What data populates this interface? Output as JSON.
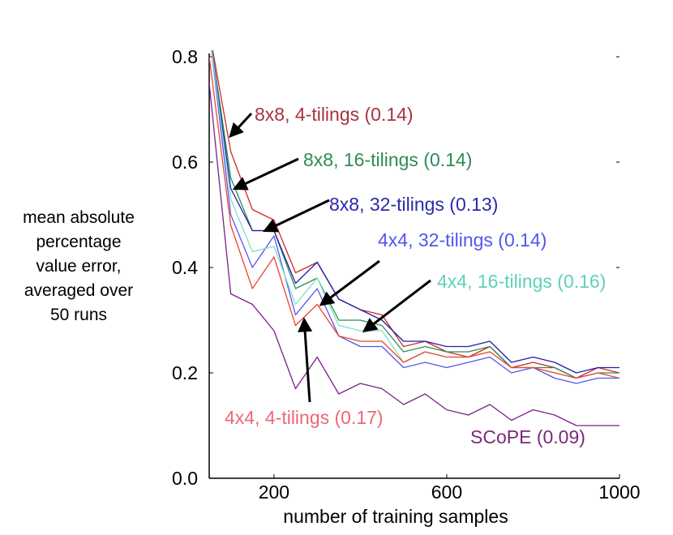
{
  "chart_data": {
    "type": "line",
    "title": "",
    "xlabel": "number of training samples",
    "ylabel": [
      "mean absolute",
      "percentage",
      "value error,",
      "averaged over",
      "50 runs"
    ],
    "xlim": [
      50,
      1000
    ],
    "ylim": [
      0,
      0.8
    ],
    "xticks": [
      200,
      600,
      1000
    ],
    "xtick_labels": [
      "200",
      "600",
      "1000"
    ],
    "yticks": [
      0.0,
      0.2,
      0.4,
      0.6,
      0.8
    ],
    "ytick_labels": [
      "0.0",
      "0.2",
      "0.4",
      "0.6",
      "0.8"
    ],
    "grid": false,
    "x": [
      50,
      100,
      150,
      200,
      250,
      300,
      350,
      400,
      450,
      500,
      550,
      600,
      650,
      700,
      750,
      800,
      850,
      900,
      950,
      1000
    ],
    "series": [
      {
        "name": "8x8, 4-tilings",
        "label": "8x8, 4-tilings (0.14)",
        "color": "#cc2b22",
        "values": [
          0.85,
          0.62,
          0.51,
          0.49,
          0.39,
          0.41,
          0.34,
          0.32,
          0.31,
          0.25,
          0.26,
          0.24,
          0.23,
          0.25,
          0.21,
          0.22,
          0.21,
          0.19,
          0.21,
          0.2
        ]
      },
      {
        "name": "8x8, 16-tilings",
        "label": "8x8, 16-tilings (0.14)",
        "color": "#2e8b57",
        "values": [
          0.85,
          0.57,
          0.47,
          0.47,
          0.36,
          0.38,
          0.3,
          0.3,
          0.29,
          0.24,
          0.25,
          0.24,
          0.24,
          0.25,
          0.21,
          0.21,
          0.21,
          0.19,
          0.2,
          0.2
        ]
      },
      {
        "name": "8x8, 32-tilings",
        "label": "8x8, 32-tilings (0.13)",
        "color": "#1f1fa8",
        "values": [
          0.85,
          0.55,
          0.47,
          0.47,
          0.37,
          0.41,
          0.34,
          0.32,
          0.3,
          0.26,
          0.26,
          0.25,
          0.25,
          0.26,
          0.22,
          0.23,
          0.22,
          0.2,
          0.21,
          0.21
        ]
      },
      {
        "name": "4x4, 32-tilings",
        "label": "4x4, 32-tilings (0.14)",
        "color": "#5555ee",
        "values": [
          0.85,
          0.5,
          0.4,
          0.46,
          0.31,
          0.36,
          0.27,
          0.25,
          0.25,
          0.21,
          0.22,
          0.21,
          0.22,
          0.23,
          0.2,
          0.21,
          0.19,
          0.18,
          0.19,
          0.19
        ]
      },
      {
        "name": "4x4, 16-tilings",
        "label": "4x4, 16-tilings (0.16)",
        "color": "#7fe0c8",
        "values": [
          0.85,
          0.53,
          0.43,
          0.44,
          0.33,
          0.38,
          0.29,
          0.28,
          0.28,
          0.22,
          0.24,
          0.23,
          0.23,
          0.24,
          0.21,
          0.21,
          0.2,
          0.19,
          0.2,
          0.19
        ]
      },
      {
        "name": "4x4, 4-tilings",
        "label": "4x4, 4-tilings (0.17)",
        "color": "#ee4433",
        "values": [
          0.8,
          0.48,
          0.36,
          0.42,
          0.29,
          0.33,
          0.27,
          0.26,
          0.26,
          0.22,
          0.24,
          0.23,
          0.23,
          0.24,
          0.21,
          0.21,
          0.2,
          0.19,
          0.2,
          0.19
        ]
      },
      {
        "name": "SCoPE",
        "label": "SCoPE (0.09)",
        "color": "#7a1f8a",
        "values": [
          0.75,
          0.35,
          0.33,
          0.28,
          0.17,
          0.23,
          0.16,
          0.18,
          0.17,
          0.14,
          0.16,
          0.13,
          0.12,
          0.14,
          0.11,
          0.13,
          0.12,
          0.1,
          0.1,
          0.1
        ]
      }
    ],
    "annotations": [
      {
        "text": "8x8, 4-tilings (0.14)",
        "color": "#a83240",
        "arrow_to": [
          100,
          0.65
        ]
      },
      {
        "text": "8x8, 16-tilings (0.14)",
        "color": "#2e8b57",
        "arrow_to": [
          110,
          0.55
        ]
      },
      {
        "text": "8x8, 32-tilings (0.13)",
        "color": "#2a2aa8",
        "arrow_to": [
          180,
          0.47
        ]
      },
      {
        "text": "4x4, 32-tilings (0.14)",
        "color": "#5555ee",
        "arrow_to": [
          310,
          0.33
        ]
      },
      {
        "text": "4x4, 16-tilings (0.16)",
        "color": "#5fd0b8",
        "arrow_to": [
          410,
          0.28
        ]
      },
      {
        "text": "4x4, 4-tilings (0.17)",
        "color": "#ee6677",
        "arrow_to": [
          270,
          0.3
        ]
      },
      {
        "text": "SCoPE (0.09)",
        "color": "#7a2a7a",
        "arrow_to": null
      }
    ]
  }
}
